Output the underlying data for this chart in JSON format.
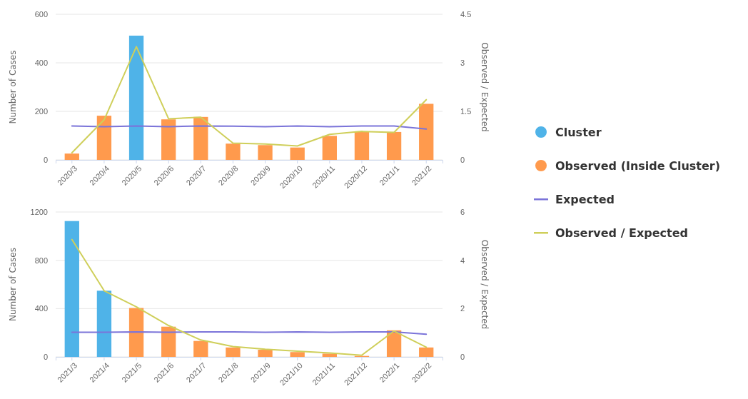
{
  "chart_data": [
    {
      "type": "bar",
      "categories": [
        "2020/3",
        "2020/4",
        "2020/5",
        "2020/6",
        "2020/7",
        "2020/8",
        "2020/9",
        "2020/10",
        "2020/11",
        "2020/12",
        "2021/1",
        "2021/2"
      ],
      "ylabel": "Number of Cases",
      "y2label": "Observed / Expected",
      "ylim": [
        0,
        600
      ],
      "yticks": [
        0,
        200,
        400,
        600
      ],
      "y2lim": [
        0,
        4.5
      ],
      "y2ticks": [
        0,
        1.5,
        3,
        4.5
      ],
      "grid": "y",
      "legend": "right",
      "marker": "none",
      "series": [
        {
          "name": "Cluster",
          "color": "#4fb3e8",
          "values": [
            null,
            null,
            512,
            null,
            null,
            null,
            null,
            null,
            null,
            null,
            null,
            null
          ]
        },
        {
          "name": "Observed (Inside Cluster)",
          "color": "#ff9a4d",
          "values": [
            26,
            182,
            null,
            167,
            177,
            67,
            61,
            51,
            99,
            117,
            115,
            231
          ]
        },
        {
          "name": "Expected",
          "type": "line",
          "color": "#7b74d9",
          "values": [
            140,
            137,
            140,
            137,
            140,
            139,
            137,
            140,
            137,
            140,
            140,
            127
          ]
        },
        {
          "name": "Observed / Expected",
          "type": "line",
          "axis": "y2",
          "color": "#cfcf5a",
          "values": [
            0.22,
            1.24,
            3.5,
            1.27,
            1.32,
            0.52,
            0.49,
            0.43,
            0.79,
            0.88,
            0.85,
            1.86
          ]
        }
      ]
    },
    {
      "type": "bar",
      "categories": [
        "2021/3",
        "2021/4",
        "2021/5",
        "2021/6",
        "2021/7",
        "2021/8",
        "2021/9",
        "2021/10",
        "2021/11",
        "2021/12",
        "2022/1",
        "2022/2"
      ],
      "ylabel": "Number of Cases",
      "y2label": "Observed / Expected",
      "ylim": [
        0,
        1200
      ],
      "yticks": [
        0,
        400,
        800,
        1200
      ],
      "y2lim": [
        0,
        6
      ],
      "y2ticks": [
        0,
        2,
        4,
        6
      ],
      "grid": "y",
      "marker": "none",
      "series": [
        {
          "color": "#4fb3e8",
          "values": [
            1125,
            548,
            null,
            null,
            null,
            null,
            null,
            null,
            null,
            null,
            null,
            null
          ]
        },
        {
          "color": "#ff9a4d",
          "values": [
            null,
            null,
            405,
            250,
            132,
            78,
            59,
            40,
            27,
            8,
            220,
            78
          ]
        },
        {
          "type": "line",
          "color": "#7b74d9",
          "values": [
            204,
            204,
            207,
            204,
            207,
            207,
            204,
            207,
            204,
            207,
            207,
            188
          ]
        },
        {
          "type": "line",
          "axis": "y2",
          "color": "#cfcf5a",
          "values": [
            4.86,
            2.74,
            2.07,
            1.3,
            0.7,
            0.43,
            0.32,
            0.24,
            0.16,
            0.07,
            1.07,
            0.4
          ]
        }
      ]
    }
  ]
}
